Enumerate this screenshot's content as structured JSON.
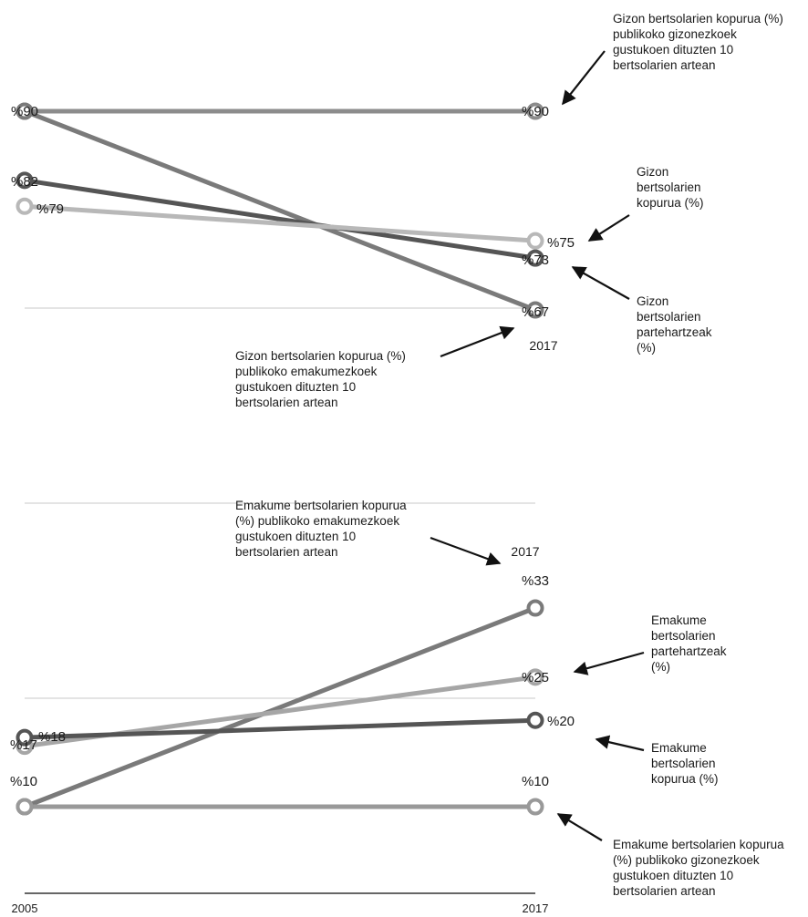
{
  "chart_data": [
    {
      "type": "line",
      "x": [
        "2005",
        "2017"
      ],
      "series": [
        {
          "name": "Gizon bertsolarien kopurua (%) publikoko gizonezkoek gustukoen dituzten 10 bertsolarien artean",
          "values": [
            90,
            90
          ],
          "labels": [
            "%90",
            "%90"
          ],
          "color": "#8c8c8c"
        },
        {
          "name": "Gizon bertsolarien kopurua (%) publikoko emakumezkoek gustukoen dituzten 10 bertsolarien artean",
          "values": [
            90,
            67
          ],
          "labels": [
            "",
            "%67"
          ],
          "color": "#7a7a7a"
        },
        {
          "name": "Gizon bertsolarien partehartzeak (%)",
          "values": [
            82,
            73
          ],
          "labels": [
            "%82",
            "%73"
          ],
          "color": "#555555"
        },
        {
          "name": "Gizon bertsolarien kopurua (%)",
          "values": [
            79,
            75
          ],
          "labels": [
            "%79",
            "%75"
          ],
          "color": "#b8b8b8"
        }
      ],
      "year_label": "2017"
    },
    {
      "type": "line",
      "x": [
        "2005",
        "2017"
      ],
      "series": [
        {
          "name": "Emakume bertsolarien kopurua (%) publikoko emakumezkoek gustukoen dituzten 10 bertsolarien artean",
          "values": [
            10,
            33
          ],
          "labels": [
            "%10",
            "%33"
          ],
          "color": "#7a7a7a"
        },
        {
          "name": "Emakume bertsolarien partehartzeak (%)",
          "values": [
            17,
            25
          ],
          "labels": [
            "%17",
            "%25"
          ],
          "color": "#a6a6a6"
        },
        {
          "name": "Emakume bertsolarien kopurua (%)",
          "values": [
            18,
            20
          ],
          "labels": [
            "%18",
            "%20"
          ],
          "color": "#555555"
        },
        {
          "name": "Emakume bertsolarien kopurua (%) publikoko gizonezkoek gustukoen dituzten 10 bertsolarien artean",
          "values": [
            10,
            10
          ],
          "labels": [
            "",
            "%10"
          ],
          "color": "#999999"
        }
      ],
      "year_label": "2017",
      "xaxis_labels": [
        "2005",
        "2017"
      ]
    }
  ],
  "annotations": {
    "top_men_public": "Gizon bertsolarien kopurua (%)\npublikoko gizonezkoek\ngustukoen dituzten 10\nbertsolarien artean",
    "top_count": "Gizon\nbertsolarien\nkopurua (%)",
    "top_participation": "Gizon\nbertsolarien\npartehartzeak\n(%)",
    "top_women_public": "Gizon bertsolarien kopurua (%)\npublikoko emakumezkoek\ngustukoen dituzten 10\nbertsolarien artean",
    "bottom_women_public": "Emakume bertsolarien kopurua\n(%) publikoko emakumezkoek\ngustukoen dituzten 10\nbertsolarien artean",
    "bottom_participation": "Emakume\nbertsolarien\npartehartzeak\n(%)",
    "bottom_count": "Emakume\nbertsolarien\nkopurua (%)",
    "bottom_men_public": "Emakume bertsolarien kopurua\n(%) publikoko gizonezkoek\ngustukoen dituzten 10\nbertsolarien artean"
  }
}
